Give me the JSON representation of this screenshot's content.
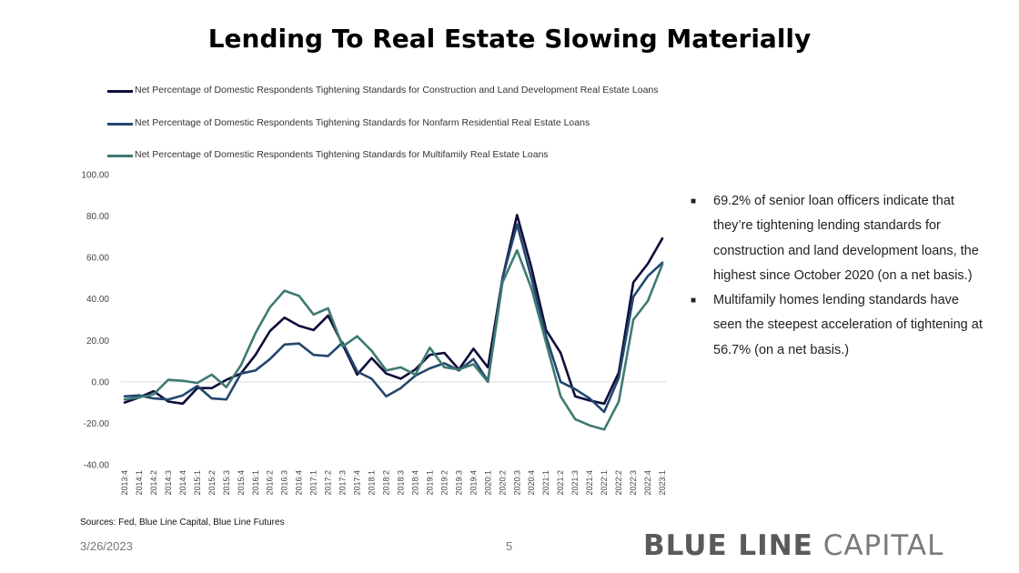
{
  "title": "Lending To Real Estate Slowing Materially",
  "bullets": [
    "69.2% of senior loan officers indicate that they’re tightening lending standards for construction and land development loans, the highest since October 2020 (on a net basis.)",
    "Multifamily homes lending standards have seen the steepest acceleration of tightening at 56.7% (on a net basis.)"
  ],
  "footer": {
    "sources": "Sources: Fed, Blue Line Capital, Blue Line Futures",
    "date": "3/26/2023",
    "page": "5",
    "logo_bold": "BLUE LINE",
    "logo_light": "CAPITAL"
  },
  "colors": {
    "series1": "#0d0d3a",
    "series2": "#23476e",
    "series3": "#3e7a73"
  },
  "chart_data": {
    "type": "line",
    "y_ticks": [
      "100.00",
      "80.00",
      "60.00",
      "40.00",
      "20.00",
      "0.00",
      "-20.00",
      "-40.00"
    ],
    "ylim": [
      -40,
      100
    ],
    "x": [
      "2013:4",
      "2014:1",
      "2014:2",
      "2014:3",
      "2014:4",
      "2015:1",
      "2015:2",
      "2015:3",
      "2015:4",
      "2016:1",
      "2016:2",
      "2016:3",
      "2016:4",
      "2017:1",
      "2017:2",
      "2017:3",
      "2017:4",
      "2018:1",
      "2018:2",
      "2018:3",
      "2018:4",
      "2019:1",
      "2019:2",
      "2019:3",
      "2019:4",
      "2020:1",
      "2020:2",
      "2020:3",
      "2020:4",
      "2021:1",
      "2021:2",
      "2021:3",
      "2021:4",
      "2022:1",
      "2022:2",
      "2022:3",
      "2022:4",
      "2023:1"
    ],
    "series": [
      {
        "name": "Net Percentage of Domestic Respondents Tightening Standards for Construction and Land Development Real Estate Loans",
        "color": "#0d0d3a",
        "values": [
          -10,
          -7.5,
          -4.5,
          -9.5,
          -10.5,
          -3,
          -3,
          1,
          4,
          13,
          24.5,
          31,
          27,
          25,
          32,
          18,
          3.5,
          11.5,
          4,
          1.5,
          6,
          13,
          14,
          6,
          16,
          7,
          50,
          80.5,
          55,
          25,
          14,
          -7,
          -9,
          -10.5,
          4.5,
          48,
          57,
          69.2
        ]
      },
      {
        "name": "Net Percentage of Domestic Respondents Tightening Standards for Nonfarm Residential Real Estate Loans",
        "color": "#23476e",
        "values": [
          -7,
          -6.5,
          -8,
          -8.5,
          -6.5,
          -2,
          -8,
          -8.5,
          4,
          5.5,
          11,
          18,
          18.5,
          13,
          12.5,
          19,
          5,
          1.5,
          -7,
          -3,
          3,
          6.5,
          9,
          5.5,
          11,
          0.5,
          50,
          76,
          50,
          22,
          0,
          -3.5,
          -8,
          -14.5,
          2,
          41,
          51,
          57.5
        ]
      },
      {
        "name": "Net Percentage of Domestic Respondents Tightening Standards for Multifamily Real Estate Loans",
        "color": "#3e7a73",
        "values": [
          -8.5,
          -7.5,
          -6,
          1,
          0.5,
          -0.5,
          3.5,
          -2.5,
          8,
          23.5,
          36,
          44,
          41.5,
          32.5,
          35.5,
          17,
          22,
          15,
          5.5,
          7,
          3.5,
          16.5,
          7,
          6,
          8.5,
          0,
          48,
          63.5,
          45,
          19,
          -7,
          -18,
          -21,
          -23,
          -9.5,
          30,
          39,
          56.7
        ]
      }
    ]
  }
}
